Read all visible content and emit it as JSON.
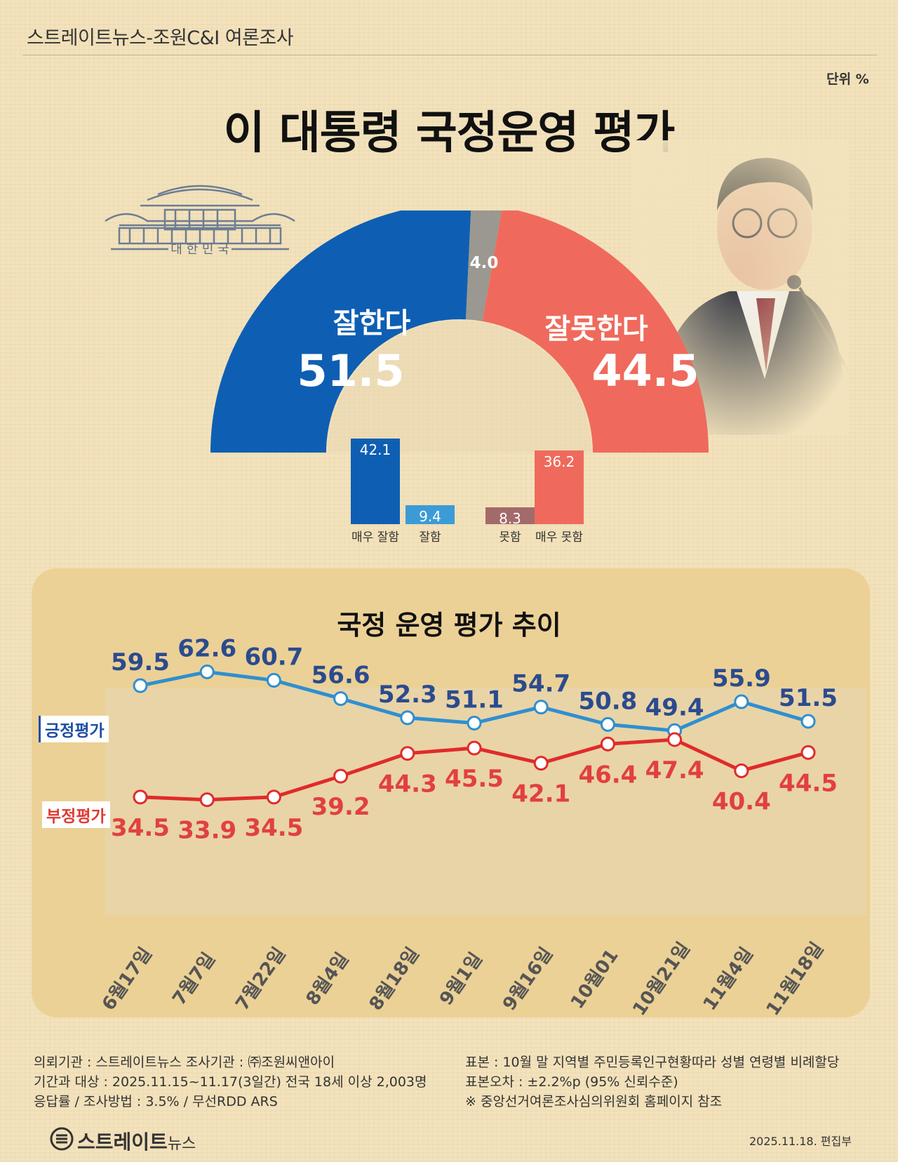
{
  "header": {
    "text": "스트레이트뉴스-조원C&I 여론조사",
    "unit": "단위 %"
  },
  "title": "이 대통령 국정운영 평가",
  "emblem": {
    "text": "대 한 민 국"
  },
  "donut": {
    "positive": {
      "label": "잘한다",
      "value": 51.5,
      "value_text": "51.5",
      "color": "#0e5fb3"
    },
    "neutral": {
      "value": 4.0,
      "value_text": "4.0",
      "color": "#9a9890"
    },
    "negative": {
      "label": "잘못한다",
      "value": 44.5,
      "value_text": "44.5",
      "color": "#ef6a5c"
    }
  },
  "breakdown": [
    {
      "label": "매우 잘함",
      "value": 42.1,
      "value_text": "42.1",
      "color": "#0e5fb3"
    },
    {
      "label": "잘함",
      "value": 9.4,
      "value_text": "9.4",
      "color": "#3c9bd6"
    },
    {
      "label": "못함",
      "value": 8.3,
      "value_text": "8.3",
      "color": "#a36a6a"
    },
    {
      "label": "매우 못함",
      "value": 36.2,
      "value_text": "36.2",
      "color": "#ef6a5c"
    }
  ],
  "trend_title": "국정 운영 평가 추이",
  "chart_data": {
    "type": "line",
    "categories": [
      "6월17일",
      "7월7일",
      "7월22일",
      "8월4일",
      "8월18일",
      "9월1일",
      "9월16일",
      "10월01",
      "10월21일",
      "11월4일",
      "11월18일"
    ],
    "series": [
      {
        "name": "긍정평가",
        "color": "#2f8fd0",
        "label_color": "#2b4b8e",
        "values": [
          59.5,
          62.6,
          60.7,
          56.6,
          52.3,
          51.1,
          54.7,
          50.8,
          49.4,
          55.9,
          51.5
        ]
      },
      {
        "name": "부정평가",
        "color": "#e02b2b",
        "label_color": "#e14040",
        "values": [
          34.5,
          33.9,
          34.5,
          39.2,
          44.3,
          45.5,
          42.1,
          46.4,
          47.4,
          40.4,
          44.5
        ]
      }
    ]
  },
  "footer": {
    "left": [
      "의뢰기관 : 스트레이트뉴스          조사기관 : ㈜조원씨앤아이",
      "기간과 대상 : 2025.11.15~11.17(3일간)   전국 18세 이상  2,003명",
      "응답률 / 조사방법 : 3.5% / 무선RDD ARS"
    ],
    "right": [
      "표본 : 10월 말 지역별 주민등록인구현황따라 성별 연령별 비례할당",
      "표본오차 : ±2.2%p (95% 신뢰수준)",
      "※ 중앙선거여론조사심의위원회 홈페이지 참조"
    ],
    "date": "2025.11.18. 편집부",
    "logo_main": "스트레이트",
    "logo_sub": "뉴스"
  }
}
